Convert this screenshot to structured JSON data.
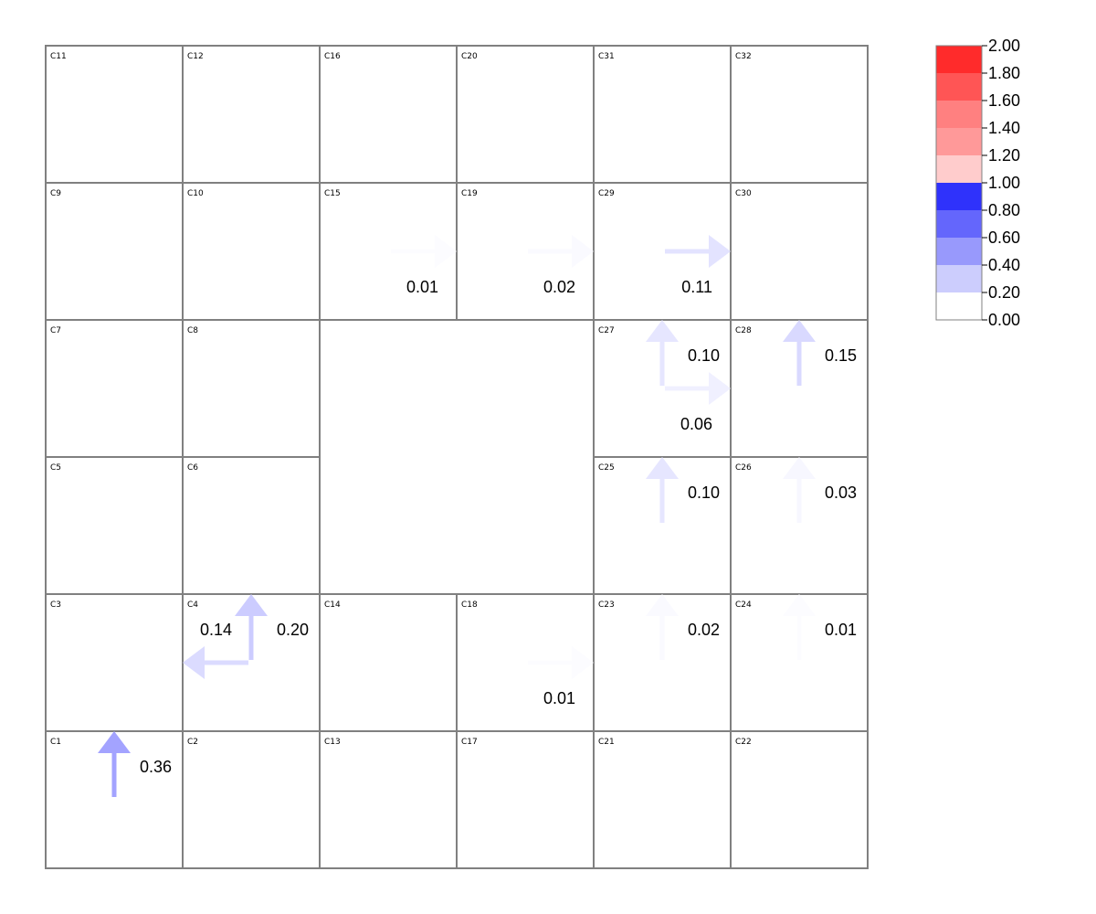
{
  "grid": {
    "cells": [
      {
        "id": "C11",
        "col": 0,
        "row": 0,
        "w": 1,
        "h": 1
      },
      {
        "id": "C12",
        "col": 1,
        "row": 0,
        "w": 1,
        "h": 1
      },
      {
        "id": "C16",
        "col": 2,
        "row": 0,
        "w": 1,
        "h": 1
      },
      {
        "id": "C20",
        "col": 3,
        "row": 0,
        "w": 1,
        "h": 1
      },
      {
        "id": "C31",
        "col": 4,
        "row": 0,
        "w": 1,
        "h": 1
      },
      {
        "id": "C32",
        "col": 5,
        "row": 0,
        "w": 1,
        "h": 1
      },
      {
        "id": "C9",
        "col": 0,
        "row": 1,
        "w": 1,
        "h": 1
      },
      {
        "id": "C10",
        "col": 1,
        "row": 1,
        "w": 1,
        "h": 1
      },
      {
        "id": "C15",
        "col": 2,
        "row": 1,
        "w": 1,
        "h": 1
      },
      {
        "id": "C19",
        "col": 3,
        "row": 1,
        "w": 1,
        "h": 1
      },
      {
        "id": "C29",
        "col": 4,
        "row": 1,
        "w": 1,
        "h": 1
      },
      {
        "id": "C30",
        "col": 5,
        "row": 1,
        "w": 1,
        "h": 1
      },
      {
        "id": "C7",
        "col": 0,
        "row": 2,
        "w": 1,
        "h": 1
      },
      {
        "id": "C8",
        "col": 1,
        "row": 2,
        "w": 1,
        "h": 1
      },
      {
        "id": "",
        "col": 2,
        "row": 2,
        "w": 2,
        "h": 2
      },
      {
        "id": "C27",
        "col": 4,
        "row": 2,
        "w": 1,
        "h": 1
      },
      {
        "id": "C28",
        "col": 5,
        "row": 2,
        "w": 1,
        "h": 1
      },
      {
        "id": "C5",
        "col": 0,
        "row": 3,
        "w": 1,
        "h": 1
      },
      {
        "id": "C6",
        "col": 1,
        "row": 3,
        "w": 1,
        "h": 1
      },
      {
        "id": "C25",
        "col": 4,
        "row": 3,
        "w": 1,
        "h": 1
      },
      {
        "id": "C26",
        "col": 5,
        "row": 3,
        "w": 1,
        "h": 1
      },
      {
        "id": "C3",
        "col": 0,
        "row": 4,
        "w": 1,
        "h": 1
      },
      {
        "id": "C4",
        "col": 1,
        "row": 4,
        "w": 1,
        "h": 1
      },
      {
        "id": "C14",
        "col": 2,
        "row": 4,
        "w": 1,
        "h": 1
      },
      {
        "id": "C18",
        "col": 3,
        "row": 4,
        "w": 1,
        "h": 1
      },
      {
        "id": "C23",
        "col": 4,
        "row": 4,
        "w": 1,
        "h": 1
      },
      {
        "id": "C24",
        "col": 5,
        "row": 4,
        "w": 1,
        "h": 1
      },
      {
        "id": "C1",
        "col": 0,
        "row": 5,
        "w": 1,
        "h": 1
      },
      {
        "id": "C2",
        "col": 1,
        "row": 5,
        "w": 1,
        "h": 1
      },
      {
        "id": "C13",
        "col": 2,
        "row": 5,
        "w": 1,
        "h": 1
      },
      {
        "id": "C17",
        "col": 3,
        "row": 5,
        "w": 1,
        "h": 1
      },
      {
        "id": "C21",
        "col": 4,
        "row": 5,
        "w": 1,
        "h": 1
      },
      {
        "id": "C22",
        "col": 5,
        "row": 5,
        "w": 1,
        "h": 1
      }
    ]
  },
  "flows": [
    {
      "cell": "C15",
      "dir": "right",
      "value": 0.01,
      "label": "0.01"
    },
    {
      "cell": "C19",
      "dir": "right",
      "value": 0.02,
      "label": "0.02"
    },
    {
      "cell": "C29",
      "dir": "right",
      "value": 0.11,
      "label": "0.11"
    },
    {
      "cell": "C27",
      "dir": "up",
      "value": 0.1,
      "label": "0.10"
    },
    {
      "cell": "C27",
      "dir": "right",
      "value": 0.06,
      "label": "0.06"
    },
    {
      "cell": "C28",
      "dir": "up",
      "value": 0.15,
      "label": "0.15"
    },
    {
      "cell": "C25",
      "dir": "up",
      "value": 0.1,
      "label": "0.10"
    },
    {
      "cell": "C26",
      "dir": "up",
      "value": 0.03,
      "label": "0.03"
    },
    {
      "cell": "C4",
      "dir": "up",
      "value": 0.2,
      "label": "0.20"
    },
    {
      "cell": "C4",
      "dir": "left",
      "value": 0.14,
      "label": "0.14"
    },
    {
      "cell": "C18",
      "dir": "right",
      "value": 0.01,
      "label": "0.01"
    },
    {
      "cell": "C23",
      "dir": "up",
      "value": 0.02,
      "label": "0.02"
    },
    {
      "cell": "C24",
      "dir": "up",
      "value": 0.01,
      "label": "0.01"
    },
    {
      "cell": "C1",
      "dir": "up",
      "value": 0.36,
      "label": "0.36"
    }
  ],
  "legend": {
    "ticks": [
      "0.00",
      "0.20",
      "0.40",
      "0.60",
      "0.80",
      "1.00",
      "1.20",
      "1.40",
      "1.60",
      "1.80",
      "2.00"
    ],
    "colors": [
      "#ffffff",
      "#cccdfd",
      "#9899fc",
      "#6466fc",
      "#2f32fb",
      "#ffcccc",
      "#ff9999",
      "#ff8080",
      "#ff5555",
      "#ff2b2b"
    ]
  }
}
